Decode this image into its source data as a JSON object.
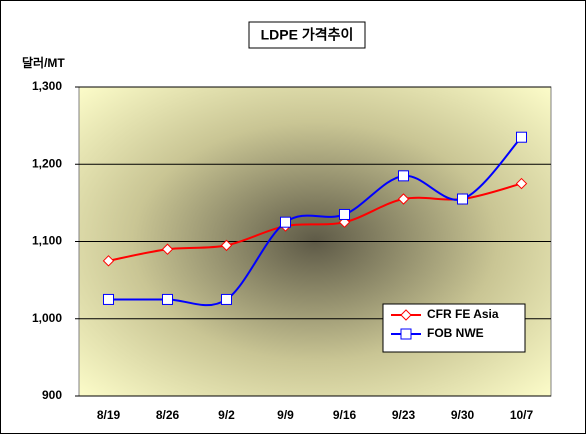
{
  "chart_data": {
    "type": "line",
    "title": "LDPE 가격추이",
    "y_label": "달러/MT",
    "categories": [
      "8/19",
      "8/26",
      "9/2",
      "9/9",
      "9/16",
      "9/23",
      "9/30",
      "10/7"
    ],
    "series": [
      {
        "name": "CFR FE Asia",
        "color": "#ff0000",
        "marker": "diamond",
        "values": [
          1075,
          1090,
          1095,
          1120,
          1125,
          1155,
          1155,
          1175
        ]
      },
      {
        "name": "FOB NWE",
        "color": "#0000ff",
        "marker": "square",
        "values": [
          1025,
          1025,
          1025,
          1125,
          1135,
          1185,
          1155,
          1235
        ]
      }
    ],
    "ylim": [
      900,
      1300
    ],
    "yticks": [
      {
        "value": 900,
        "label": "900"
      },
      {
        "value": 1000,
        "label": "1,000"
      },
      {
        "value": 1100,
        "label": "1,100"
      },
      {
        "value": 1200,
        "label": "1,200"
      },
      {
        "value": 1300,
        "label": "1,300"
      }
    ],
    "grid": true,
    "legend": "lower right"
  }
}
